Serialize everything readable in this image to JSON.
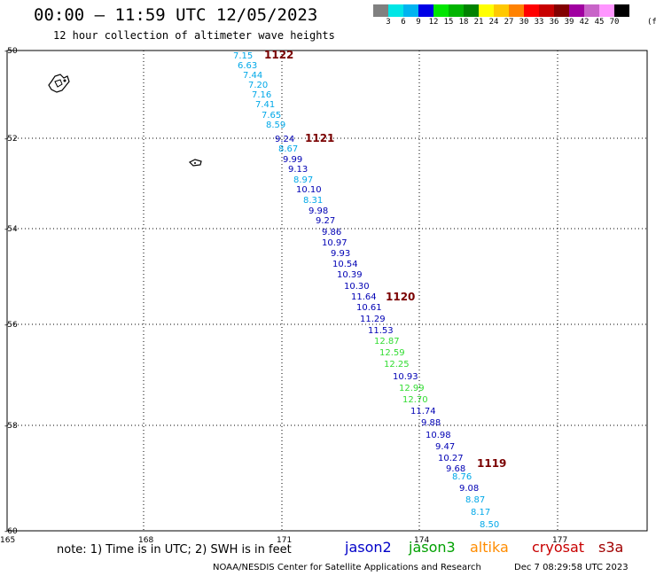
{
  "header": {
    "title": "00:00 – 11:59 UTC 12/05/2023",
    "subtitle": "12 hour collection of altimeter wave heights"
  },
  "colorbar": {
    "colors": [
      "#808080",
      "#00e6e6",
      "#00b4f0",
      "#0000e6",
      "#00e600",
      "#00b400",
      "#008200",
      "#ffff00",
      "#ffc800",
      "#ff8200",
      "#ff0000",
      "#c80000",
      "#820000",
      "#a000a0",
      "#c864c8",
      "#ff96ff",
      "#000000"
    ],
    "labels": [
      "3",
      "6",
      "9",
      "12",
      "15",
      "18",
      "21",
      "24",
      "27",
      "30",
      "33",
      "36",
      "39",
      "42",
      "45",
      "70"
    ],
    "unit": "(ft)"
  },
  "axes": {
    "lat_labels": [
      "-50",
      "-52",
      "-54",
      "-56",
      "-58",
      "-60"
    ],
    "lon_labels": [
      "165",
      "168",
      "171",
      "174",
      "177"
    ]
  },
  "colors": {
    "jason2": "#0000c8",
    "jason3": "#00a000",
    "altika": "#ff8c00",
    "cryosat": "#c80000",
    "s3a": "#a00000",
    "band_6_9": "#00a8e8",
    "band_9_12": "#0000b4",
    "band_12_15": "#32dc32",
    "time": "#7a0000"
  },
  "wave_heights": [
    {
      "v": "7.15",
      "band": "band_6_9"
    },
    {
      "v": "6.63",
      "band": "band_6_9"
    },
    {
      "v": "7.44",
      "band": "band_6_9"
    },
    {
      "v": "7.20",
      "band": "band_6_9"
    },
    {
      "v": "7.16",
      "band": "band_6_9"
    },
    {
      "v": "7.41",
      "band": "band_6_9"
    },
    {
      "v": "7.65",
      "band": "band_6_9"
    },
    {
      "v": "8.59",
      "band": "band_6_9"
    },
    {
      "v": "9.24",
      "band": "band_9_12"
    },
    {
      "v": "8.67",
      "band": "band_6_9"
    },
    {
      "v": "9.99",
      "band": "band_9_12"
    },
    {
      "v": "9.13",
      "band": "band_9_12"
    },
    {
      "v": "8.97",
      "band": "band_6_9"
    },
    {
      "v": "10.10",
      "band": "band_9_12"
    },
    {
      "v": "8.31",
      "band": "band_6_9"
    },
    {
      "v": "9.98",
      "band": "band_9_12"
    },
    {
      "v": "9.27",
      "band": "band_9_12"
    },
    {
      "v": "9.86",
      "band": "band_9_12"
    },
    {
      "v": "10.97",
      "band": "band_9_12"
    },
    {
      "v": "9.93",
      "band": "band_9_12"
    },
    {
      "v": "10.54",
      "band": "band_9_12"
    },
    {
      "v": "10.39",
      "band": "band_9_12"
    },
    {
      "v": "10.30",
      "band": "band_9_12"
    },
    {
      "v": "11.64",
      "band": "band_9_12"
    },
    {
      "v": "10.61",
      "band": "band_9_12"
    },
    {
      "v": "11.29",
      "band": "band_9_12"
    },
    {
      "v": "11.53",
      "band": "band_9_12"
    },
    {
      "v": "12.87",
      "band": "band_12_15"
    },
    {
      "v": "12.59",
      "band": "band_12_15"
    },
    {
      "v": "12.25",
      "band": "band_12_15"
    },
    {
      "v": "10.93",
      "band": "band_9_12"
    },
    {
      "v": "12.99",
      "band": "band_12_15"
    },
    {
      "v": "12.70",
      "band": "band_12_15"
    },
    {
      "v": "11.74",
      "band": "band_9_12"
    },
    {
      "v": "9.88",
      "band": "band_9_12"
    },
    {
      "v": "10.98",
      "band": "band_9_12"
    },
    {
      "v": "9.47",
      "band": "band_9_12"
    },
    {
      "v": "10.27",
      "band": "band_9_12"
    },
    {
      "v": "9.68",
      "band": "band_9_12"
    },
    {
      "v": "8.76",
      "band": "band_6_9"
    },
    {
      "v": "9.08",
      "band": "band_9_12"
    },
    {
      "v": "8.87",
      "band": "band_6_9"
    },
    {
      "v": "8.17",
      "band": "band_6_9"
    },
    {
      "v": "8.50",
      "band": "band_6_9"
    }
  ],
  "time_labels": [
    "1122",
    "1121",
    "1120",
    "1119"
  ],
  "footer": {
    "note": "note: 1) Time is in UTC; 2) SWH is in feet",
    "legend": {
      "jason2": "jason2",
      "jason3": "jason3",
      "altika": "altika",
      "cryosat": "cryosat",
      "s3a": "s3a"
    },
    "credit": "NOAA/NESDIS Center for Satellite Applications and Research",
    "timestamp": "Dec  7 08:29:58 UTC 2023"
  }
}
